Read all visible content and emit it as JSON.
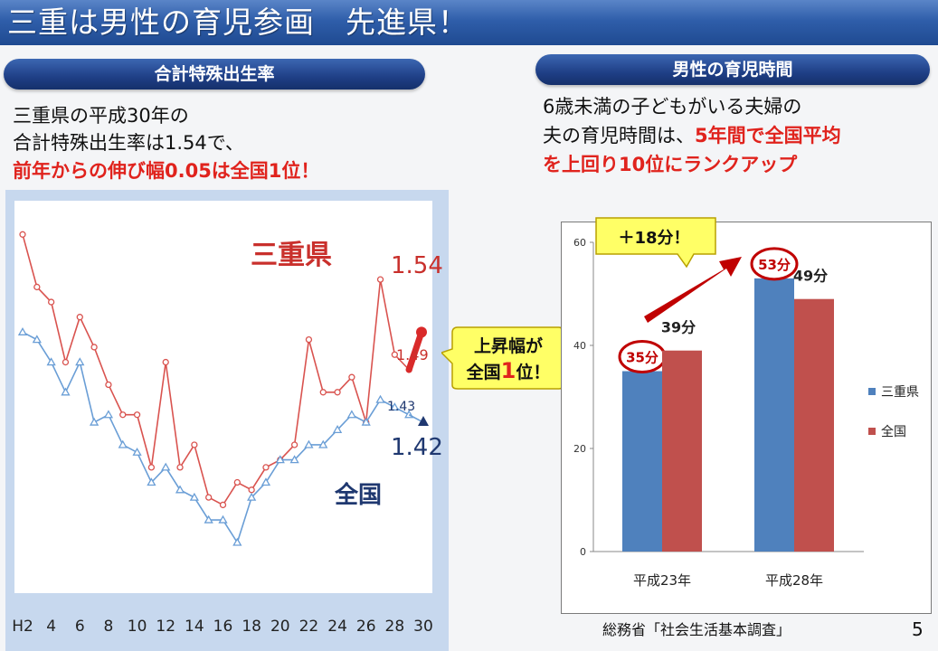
{
  "slide_title": "三重は男性の育児参画　先進県！",
  "left_section": {
    "header": "合計特殊出生率",
    "line1": "三重県の平成30年の",
    "line2": "合計特殊出生率は1.54で、",
    "line3_red": "前年からの伸び幅0.05は全国1位！"
  },
  "right_section": {
    "header": "男性の育児時間",
    "line1": "6歳未満の子どもがいる夫婦の",
    "line2_black": "夫の育児時間は、",
    "line2_red": "5年間で全国平均",
    "line3_red": "を上回り10位にランクアップ"
  },
  "middle_callout": {
    "line1": "上昇幅が",
    "line2_pre": "全国",
    "line2_num": "1",
    "line2_post": "位！"
  },
  "bar_callout": "＋18分！",
  "source": "総務省「社会生活基本調査」",
  "page_number": "5",
  "colors": {
    "mie_line": "#d9534f",
    "national_line": "#6a9ed6",
    "mie_bar": "#4f81bd",
    "national_bar": "#c0504d",
    "accent_red": "#e0231d",
    "callout_yellow": "#ffff66",
    "navy": "#1f3870"
  },
  "chart_data": [
    {
      "type": "line",
      "x": [
        "H2",
        "H3",
        "4",
        "5",
        "6",
        "7",
        "8",
        "9",
        "10",
        "11",
        "12",
        "13",
        "14",
        "15",
        "16",
        "17",
        "18",
        "19",
        "20",
        "21",
        "22",
        "23",
        "24",
        "25",
        "26",
        "27",
        "28",
        "29",
        "30"
      ],
      "xtick_labels": [
        "H2",
        "4",
        "6",
        "8",
        "10",
        "12",
        "14",
        "16",
        "18",
        "20",
        "22",
        "24",
        "26",
        "28",
        "30"
      ],
      "series": [
        {
          "name": "三重県",
          "values": [
            1.67,
            1.6,
            1.58,
            1.5,
            1.56,
            1.52,
            1.47,
            1.43,
            1.43,
            1.36,
            1.5,
            1.36,
            1.39,
            1.32,
            1.31,
            1.34,
            1.33,
            1.36,
            1.37,
            1.39,
            1.53,
            1.46,
            1.46,
            1.48,
            1.42,
            1.61,
            1.51,
            1.49,
            1.54
          ]
        },
        {
          "name": "全国",
          "values": [
            1.54,
            1.53,
            1.5,
            1.46,
            1.5,
            1.42,
            1.43,
            1.39,
            1.38,
            1.34,
            1.36,
            1.33,
            1.32,
            1.29,
            1.29,
            1.26,
            1.32,
            1.34,
            1.37,
            1.37,
            1.39,
            1.39,
            1.41,
            1.43,
            1.42,
            1.45,
            1.44,
            1.43,
            1.42
          ]
        }
      ],
      "annotations": {
        "mie_label": "三重県",
        "national_label": "全国",
        "mie_last": "1.54",
        "mie_prev": "1.49",
        "national_prev": "1.43",
        "national_last": "1.42"
      }
    },
    {
      "type": "bar",
      "categories": [
        "平成23年",
        "平成28年"
      ],
      "series": [
        {
          "name": "三重県",
          "values": [
            35,
            53
          ],
          "labels": [
            "35分",
            "53分"
          ]
        },
        {
          "name": "全国",
          "values": [
            39,
            49
          ],
          "labels": [
            "39分",
            "49分"
          ]
        }
      ],
      "ylim": [
        0,
        60
      ],
      "yticks": [
        "0",
        "20",
        "40",
        "60"
      ],
      "legend_position": "right"
    }
  ]
}
